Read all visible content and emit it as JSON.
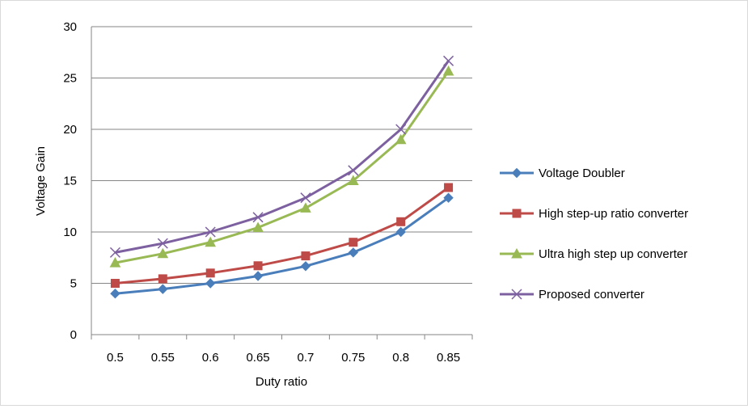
{
  "chart_data": {
    "type": "line",
    "title": "",
    "xlabel": "Duty ratio",
    "ylabel": "Voltage Gain",
    "categories": [
      "0.5",
      "0.55",
      "0.6",
      "0.65",
      "0.7",
      "0.75",
      "0.8",
      "0.85"
    ],
    "x": [
      0.5,
      0.55,
      0.6,
      0.65,
      0.7,
      0.75,
      0.8,
      0.85
    ],
    "ylim": [
      0,
      30
    ],
    "yticks": [
      0,
      5,
      10,
      15,
      20,
      25,
      30
    ],
    "grid": "horizontal",
    "legend_position": "right",
    "series": [
      {
        "name": "Voltage Doubler",
        "values": [
          4.0,
          4.44,
          5.0,
          5.71,
          6.67,
          8.0,
          10.0,
          13.33
        ],
        "color": "#4a7ebb",
        "marker": "diamond"
      },
      {
        "name": "High step-up ratio converter",
        "values": [
          5.0,
          5.44,
          6.0,
          6.71,
          7.67,
          9.0,
          11.0,
          14.33
        ],
        "color": "#be4b48",
        "marker": "square"
      },
      {
        "name": "Ultra high step up converter",
        "values": [
          7.0,
          7.89,
          9.0,
          10.43,
          12.33,
          15.0,
          19.0,
          25.67
        ],
        "color": "#98b954",
        "marker": "triangle"
      },
      {
        "name": "Proposed converter",
        "values": [
          8.0,
          8.89,
          10.0,
          11.43,
          13.33,
          16.0,
          20.0,
          26.67
        ],
        "color": "#7d60a0",
        "marker": "x"
      }
    ]
  }
}
